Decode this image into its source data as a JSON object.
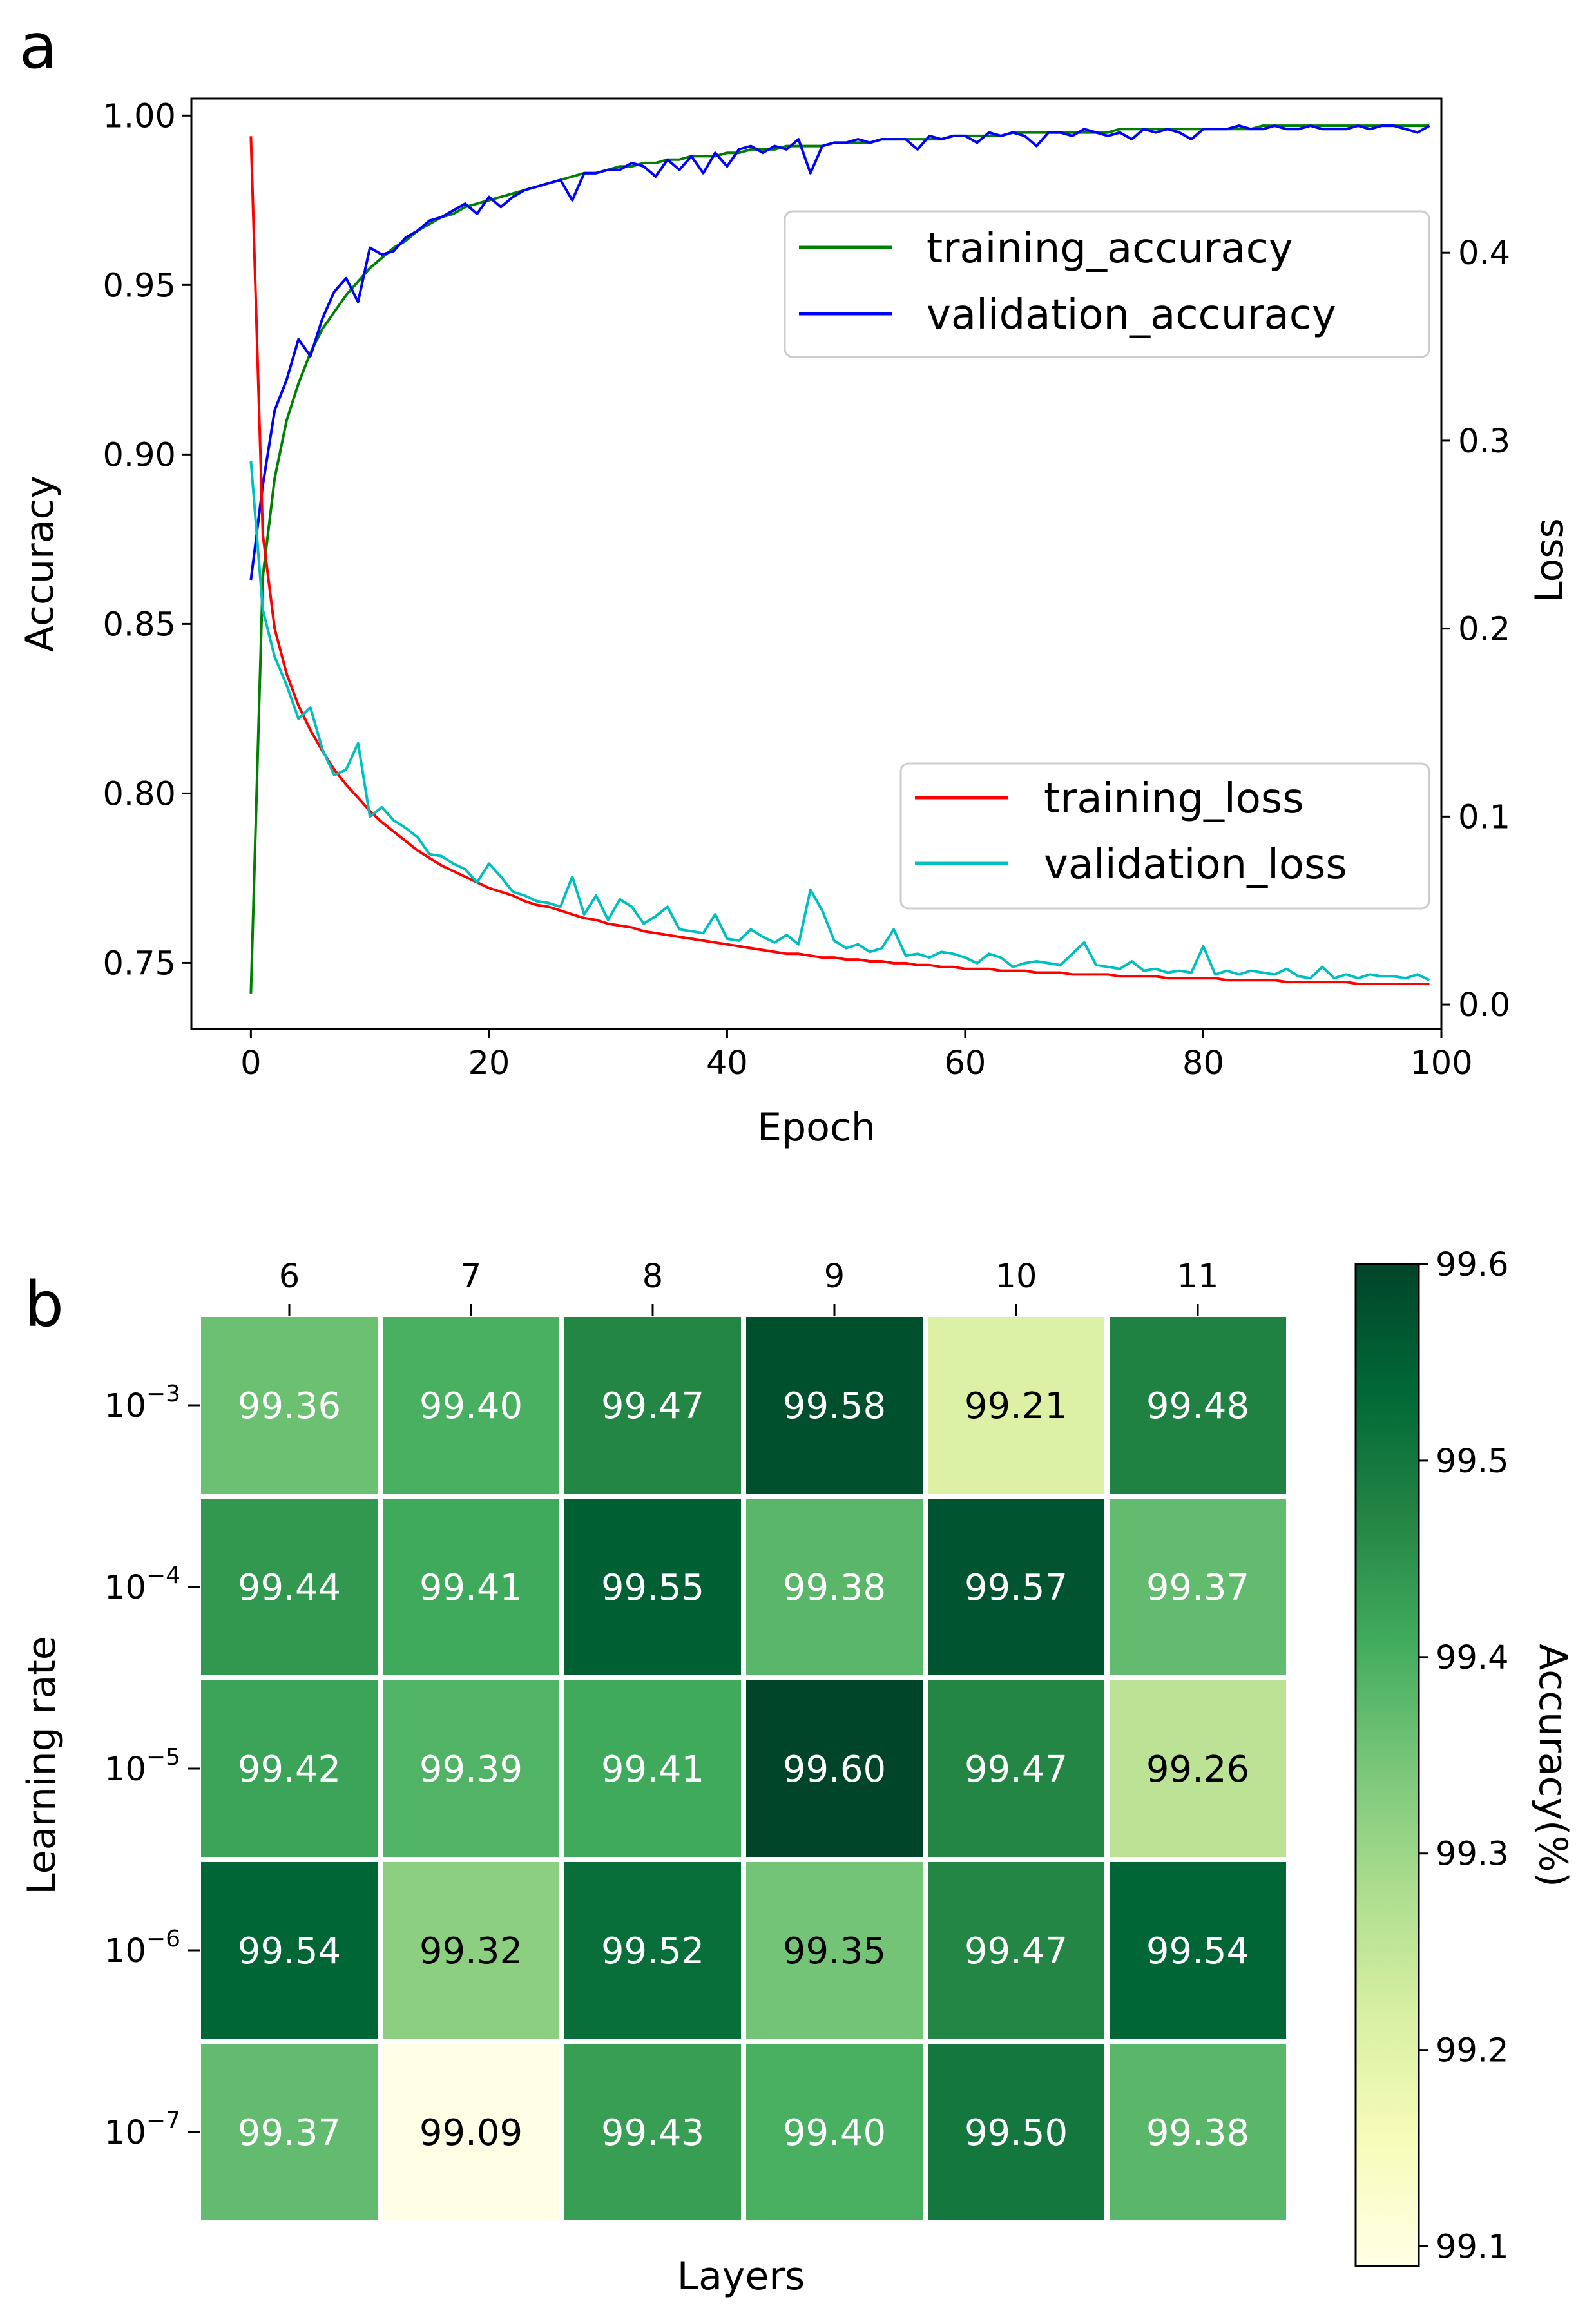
{
  "chart_data": [
    {
      "panel": "a",
      "type": "line",
      "xlabel": "Epoch",
      "ylabel": "Accuracy",
      "ylabel_right": "Loss",
      "xlim": [
        -5,
        100
      ],
      "ylim": [
        0.7305,
        1.005
      ],
      "ylim_right": [
        -0.013,
        0.482
      ],
      "xticks": [
        0,
        20,
        40,
        60,
        80,
        100
      ],
      "yticks": [
        "0.75",
        "0.80",
        "0.85",
        "0.90",
        "0.95",
        "1.00"
      ],
      "yticks_right": [
        "0.0",
        "0.1",
        "0.2",
        "0.3",
        "0.4"
      ],
      "legend_accuracy_position": "upper-right",
      "legend_loss_position": "lower-right",
      "series": [
        {
          "name": "training_accuracy",
          "axis": "left",
          "color": "#008000",
          "values": [
            0.741,
            0.864,
            0.893,
            0.91,
            0.921,
            0.93,
            0.937,
            0.942,
            0.947,
            0.951,
            0.955,
            0.958,
            0.961,
            0.963,
            0.966,
            0.968,
            0.97,
            0.971,
            0.973,
            0.974,
            0.975,
            0.976,
            0.977,
            0.978,
            0.979,
            0.98,
            0.981,
            0.982,
            0.983,
            0.983,
            0.984,
            0.985,
            0.985,
            0.986,
            0.986,
            0.987,
            0.987,
            0.988,
            0.988,
            0.988,
            0.989,
            0.989,
            0.99,
            0.99,
            0.99,
            0.991,
            0.991,
            0.991,
            0.991,
            0.992,
            0.992,
            0.992,
            0.992,
            0.993,
            0.993,
            0.993,
            0.993,
            0.993,
            0.993,
            0.994,
            0.994,
            0.994,
            0.994,
            0.994,
            0.995,
            0.995,
            0.995,
            0.995,
            0.995,
            0.995,
            0.995,
            0.995,
            0.995,
            0.996,
            0.996,
            0.996,
            0.996,
            0.996,
            0.996,
            0.996,
            0.996,
            0.996,
            0.996,
            0.996,
            0.996,
            0.997,
            0.997,
            0.997,
            0.997,
            0.997,
            0.997,
            0.997,
            0.997,
            0.997,
            0.997,
            0.997,
            0.997,
            0.997,
            0.997,
            0.997
          ]
        },
        {
          "name": "validation_accuracy",
          "axis": "left",
          "color": "#0000ff",
          "values": [
            0.863,
            0.891,
            0.913,
            0.922,
            0.934,
            0.929,
            0.94,
            0.948,
            0.952,
            0.945,
            0.961,
            0.959,
            0.96,
            0.964,
            0.966,
            0.969,
            0.97,
            0.972,
            0.974,
            0.971,
            0.976,
            0.973,
            0.976,
            0.978,
            0.979,
            0.98,
            0.981,
            0.975,
            0.983,
            0.983,
            0.984,
            0.984,
            0.986,
            0.985,
            0.982,
            0.987,
            0.984,
            0.988,
            0.983,
            0.989,
            0.985,
            0.99,
            0.991,
            0.989,
            0.991,
            0.99,
            0.993,
            0.983,
            0.991,
            0.992,
            0.992,
            0.993,
            0.992,
            0.993,
            0.993,
            0.993,
            0.99,
            0.994,
            0.993,
            0.994,
            0.994,
            0.992,
            0.995,
            0.994,
            0.995,
            0.994,
            0.991,
            0.995,
            0.995,
            0.994,
            0.996,
            0.995,
            0.994,
            0.995,
            0.993,
            0.996,
            0.995,
            0.996,
            0.995,
            0.993,
            0.996,
            0.996,
            0.996,
            0.997,
            0.996,
            0.996,
            0.997,
            0.996,
            0.996,
            0.997,
            0.996,
            0.996,
            0.996,
            0.997,
            0.996,
            0.997,
            0.997,
            0.996,
            0.995,
            0.997
          ]
        },
        {
          "name": "training_loss",
          "axis": "right",
          "color": "#ff0000",
          "values": [
            0.462,
            0.25,
            0.2,
            0.176,
            0.159,
            0.146,
            0.135,
            0.125,
            0.117,
            0.11,
            0.103,
            0.097,
            0.092,
            0.087,
            0.082,
            0.078,
            0.074,
            0.071,
            0.068,
            0.065,
            0.062,
            0.06,
            0.058,
            0.055,
            0.053,
            0.052,
            0.05,
            0.048,
            0.046,
            0.045,
            0.043,
            0.042,
            0.041,
            0.039,
            0.038,
            0.037,
            0.036,
            0.035,
            0.034,
            0.033,
            0.032,
            0.031,
            0.03,
            0.029,
            0.028,
            0.027,
            0.027,
            0.026,
            0.025,
            0.025,
            0.024,
            0.024,
            0.023,
            0.023,
            0.022,
            0.022,
            0.021,
            0.021,
            0.02,
            0.02,
            0.019,
            0.019,
            0.019,
            0.018,
            0.018,
            0.018,
            0.017,
            0.017,
            0.017,
            0.016,
            0.016,
            0.016,
            0.016,
            0.015,
            0.015,
            0.015,
            0.015,
            0.014,
            0.014,
            0.014,
            0.014,
            0.014,
            0.013,
            0.013,
            0.013,
            0.013,
            0.013,
            0.012,
            0.012,
            0.012,
            0.012,
            0.012,
            0.012,
            0.011,
            0.011,
            0.011,
            0.011,
            0.011,
            0.011,
            0.011
          ]
        },
        {
          "name": "validation_loss",
          "axis": "right",
          "color": "#00bfbf",
          "values": [
            0.289,
            0.21,
            0.185,
            0.17,
            0.152,
            0.158,
            0.136,
            0.122,
            0.125,
            0.139,
            0.1,
            0.105,
            0.098,
            0.094,
            0.089,
            0.08,
            0.079,
            0.075,
            0.072,
            0.065,
            0.075,
            0.068,
            0.06,
            0.058,
            0.055,
            0.054,
            0.052,
            0.068,
            0.048,
            0.058,
            0.045,
            0.056,
            0.052,
            0.043,
            0.047,
            0.052,
            0.04,
            0.039,
            0.038,
            0.048,
            0.035,
            0.034,
            0.04,
            0.036,
            0.033,
            0.037,
            0.032,
            0.061,
            0.05,
            0.034,
            0.03,
            0.032,
            0.028,
            0.03,
            0.04,
            0.026,
            0.027,
            0.025,
            0.028,
            0.027,
            0.025,
            0.022,
            0.027,
            0.025,
            0.02,
            0.022,
            0.023,
            0.022,
            0.021,
            0.027,
            0.033,
            0.021,
            0.02,
            0.019,
            0.023,
            0.018,
            0.019,
            0.017,
            0.018,
            0.017,
            0.031,
            0.016,
            0.018,
            0.016,
            0.018,
            0.017,
            0.016,
            0.019,
            0.015,
            0.014,
            0.02,
            0.014,
            0.016,
            0.014,
            0.016,
            0.015,
            0.015,
            0.014,
            0.016,
            0.013
          ]
        }
      ]
    },
    {
      "panel": "b",
      "type": "heatmap",
      "xlabel": "Layers",
      "ylabel": "Learning rate",
      "colorbar_label": "Accuracy(%)",
      "x_categories": [
        "6",
        "7",
        "8",
        "9",
        "10",
        "11"
      ],
      "y_categories": [
        {
          "base": "10",
          "exp": "−3"
        },
        {
          "base": "10",
          "exp": "−4"
        },
        {
          "base": "10",
          "exp": "−5"
        },
        {
          "base": "10",
          "exp": "−6"
        },
        {
          "base": "10",
          "exp": "−7"
        }
      ],
      "values": [
        [
          99.36,
          99.4,
          99.47,
          99.58,
          99.21,
          99.48
        ],
        [
          99.44,
          99.41,
          99.55,
          99.38,
          99.57,
          99.37
        ],
        [
          99.42,
          99.39,
          99.41,
          99.6,
          99.47,
          99.26
        ],
        [
          99.54,
          99.32,
          99.52,
          99.35,
          99.47,
          99.54
        ],
        [
          99.37,
          99.09,
          99.43,
          99.4,
          99.5,
          99.38
        ]
      ],
      "vmin": 99.09,
      "vmax": 99.6,
      "colorbar_ticks": [
        "99.1",
        "99.2",
        "99.3",
        "99.4",
        "99.5",
        "99.6"
      ],
      "colormap": "Greens",
      "colormap_stops": [
        "#ffffe5",
        "#f7fcb9",
        "#d9f0a3",
        "#addd8e",
        "#78c679",
        "#41ab5d",
        "#238443",
        "#006837",
        "#004529"
      ]
    }
  ],
  "panel_labels": [
    "a",
    "b"
  ]
}
